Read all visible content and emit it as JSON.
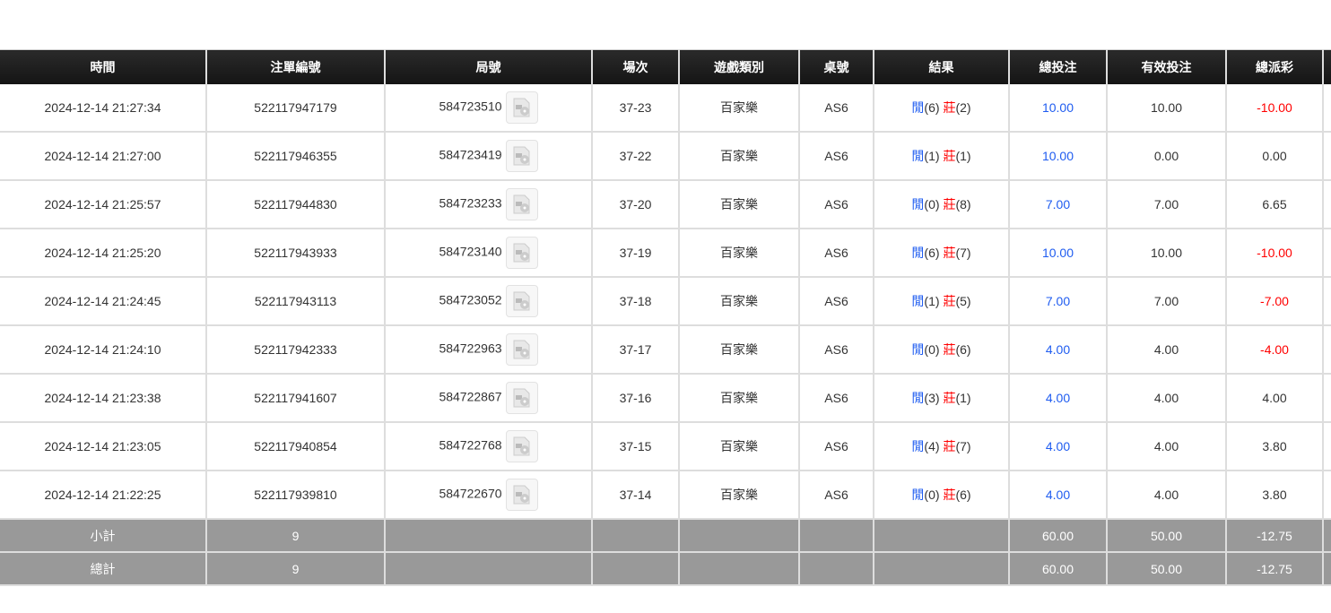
{
  "columns": [
    "時間",
    "注單編號",
    "局號",
    "場次",
    "遊戲類別",
    "桌號",
    "結果",
    "總投注",
    "有效投注",
    "總派彩"
  ],
  "result_labels": {
    "player": "閒",
    "banker": "莊"
  },
  "rows": [
    {
      "time": "2024-12-14 21:27:34",
      "bet_id": "522117947179",
      "round": "584723510",
      "shoe": "37-23",
      "game": "百家樂",
      "table": "AS6",
      "player": "(6)",
      "banker": "(2)",
      "total": "10.00",
      "valid": "10.00",
      "payout": "-10.00"
    },
    {
      "time": "2024-12-14 21:27:00",
      "bet_id": "522117946355",
      "round": "584723419",
      "shoe": "37-22",
      "game": "百家樂",
      "table": "AS6",
      "player": "(1)",
      "banker": "(1)",
      "total": "10.00",
      "valid": "0.00",
      "payout": "0.00"
    },
    {
      "time": "2024-12-14 21:25:57",
      "bet_id": "522117944830",
      "round": "584723233",
      "shoe": "37-20",
      "game": "百家樂",
      "table": "AS6",
      "player": "(0)",
      "banker": "(8)",
      "total": "7.00",
      "valid": "7.00",
      "payout": "6.65"
    },
    {
      "time": "2024-12-14 21:25:20",
      "bet_id": "522117943933",
      "round": "584723140",
      "shoe": "37-19",
      "game": "百家樂",
      "table": "AS6",
      "player": "(6)",
      "banker": "(7)",
      "total": "10.00",
      "valid": "10.00",
      "payout": "-10.00"
    },
    {
      "time": "2024-12-14 21:24:45",
      "bet_id": "522117943113",
      "round": "584723052",
      "shoe": "37-18",
      "game": "百家樂",
      "table": "AS6",
      "player": "(1)",
      "banker": "(5)",
      "total": "7.00",
      "valid": "7.00",
      "payout": "-7.00"
    },
    {
      "time": "2024-12-14 21:24:10",
      "bet_id": "522117942333",
      "round": "584722963",
      "shoe": "37-17",
      "game": "百家樂",
      "table": "AS6",
      "player": "(0)",
      "banker": "(6)",
      "total": "4.00",
      "valid": "4.00",
      "payout": "-4.00"
    },
    {
      "time": "2024-12-14 21:23:38",
      "bet_id": "522117941607",
      "round": "584722867",
      "shoe": "37-16",
      "game": "百家樂",
      "table": "AS6",
      "player": "(3)",
      "banker": "(1)",
      "total": "4.00",
      "valid": "4.00",
      "payout": "4.00"
    },
    {
      "time": "2024-12-14 21:23:05",
      "bet_id": "522117940854",
      "round": "584722768",
      "shoe": "37-15",
      "game": "百家樂",
      "table": "AS6",
      "player": "(4)",
      "banker": "(7)",
      "total": "4.00",
      "valid": "4.00",
      "payout": "3.80"
    },
    {
      "time": "2024-12-14 21:22:25",
      "bet_id": "522117939810",
      "round": "584722670",
      "shoe": "37-14",
      "game": "百家樂",
      "table": "AS6",
      "player": "(0)",
      "banker": "(6)",
      "total": "4.00",
      "valid": "4.00",
      "payout": "3.80"
    }
  ],
  "summary": [
    {
      "label": "小計",
      "count": "9",
      "total": "60.00",
      "valid": "50.00",
      "payout": "-12.75"
    },
    {
      "label": "總計",
      "count": "9",
      "total": "60.00",
      "valid": "50.00",
      "payout": "-12.75"
    }
  ],
  "colors": {
    "header": "#1a1a1a",
    "summary": "#999999",
    "blue": "#1f5cf0",
    "red": "#ff0000"
  }
}
